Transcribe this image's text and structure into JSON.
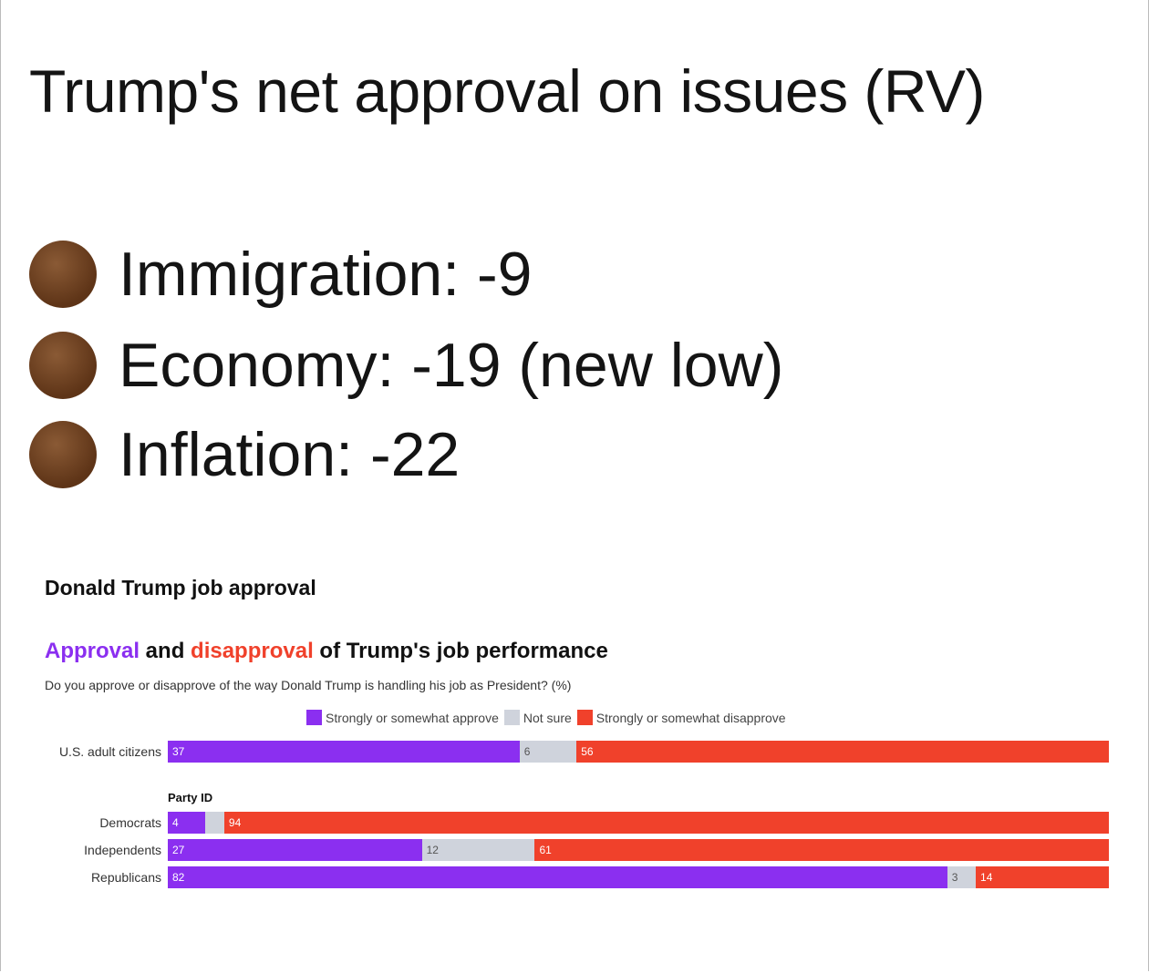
{
  "headline": "Trump's net approval on issues (RV)",
  "bullets": [
    {
      "icon": "brown-circle-icon",
      "text": "Immigration: -9"
    },
    {
      "icon": "brown-circle-icon",
      "text": "Economy: -19 (new low)"
    },
    {
      "icon": "brown-circle-icon",
      "text": "Inflation: -22"
    }
  ],
  "chart_data": {
    "type": "bar",
    "stacked": true,
    "orientation": "horizontal",
    "title": "Donald Trump job approval",
    "subtitle_parts": {
      "approval": "Approval",
      "and": " and ",
      "disapproval": "disapproval",
      "rest": " of Trump's job performance"
    },
    "question": "Do you approve or disapprove of the way Donald Trump is handling his job as President? (%)",
    "group_label": "Party ID",
    "legend_placement": "top",
    "categories": [
      "U.S. adult citizens",
      "Democrats",
      "Independents",
      "Republicans"
    ],
    "series": [
      {
        "name": "Strongly or somewhat approve",
        "color": "#8b2ff0",
        "values": [
          37,
          4,
          27,
          82
        ]
      },
      {
        "name": "Not sure",
        "color": "#cfd3dc",
        "values": [
          6,
          2,
          12,
          3
        ]
      },
      {
        "name": "Strongly or somewhat disapprove",
        "color": "#f0412b",
        "values": [
          56,
          94,
          61,
          14
        ]
      }
    ],
    "labels_shown": [
      [
        "37",
        "6",
        "56"
      ],
      [
        "4",
        "",
        "94"
      ],
      [
        "27",
        "12",
        "61"
      ],
      [
        "82",
        "3",
        "14"
      ]
    ]
  }
}
